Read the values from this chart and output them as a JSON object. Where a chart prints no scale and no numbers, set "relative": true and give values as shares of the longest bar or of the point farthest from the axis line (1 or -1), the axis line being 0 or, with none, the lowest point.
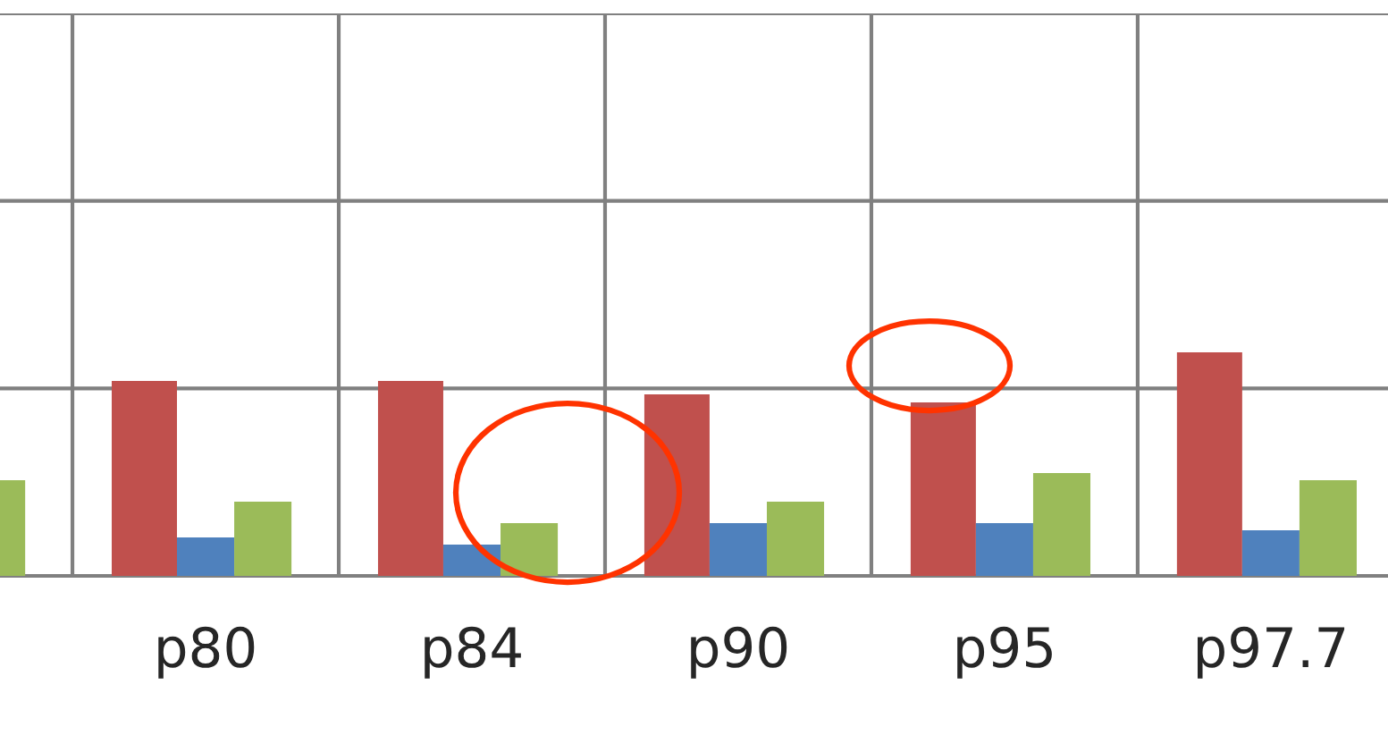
{
  "chart_data": {
    "type": "bar",
    "relative": true,
    "grid": true,
    "categories": [
      null,
      "p80",
      "p84",
      "p90",
      "p95",
      "p97.7"
    ],
    "series": [
      {
        "color": "#c0504d",
        "values": [
          null,
          0.872,
          0.872,
          0.812,
          0.776,
          1
        ]
      },
      {
        "color": "#4f81bd",
        "values": [
          null,
          0.172,
          0.14,
          0.236,
          0.236,
          0.204
        ]
      },
      {
        "color": "#9bbb59",
        "values": [
          0.428,
          0.332,
          0.236,
          0.332,
          0.46,
          0.428
        ]
      }
    ]
  }
}
